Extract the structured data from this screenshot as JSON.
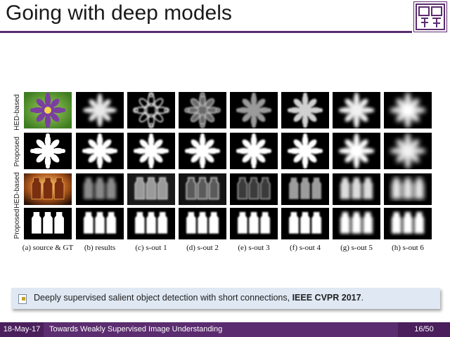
{
  "slide": {
    "title": "Going with deep models"
  },
  "figure": {
    "row_labels": [
      "HED-based",
      "Proposed",
      "HED-based",
      "Proposed"
    ],
    "column_captions": [
      "(a) source & GT",
      "(b) results",
      "(c) s-out 1",
      "(d) s-out 2",
      "(e) s-out 3",
      "(f) s-out 4",
      "(g) s-out 5",
      "(h) s-out 6"
    ]
  },
  "citation": {
    "text": "Deeply supervised salient object detection with short connections, ",
    "venue": "IEEE CVPR 2017",
    "tail": "."
  },
  "footer": {
    "date": "18-May-17",
    "title": "Towards Weakly Supervised Image Understanding",
    "page": "16/50"
  },
  "colors": {
    "accent": "#5b2c6f",
    "citation_bg": "#dfe8f3"
  }
}
